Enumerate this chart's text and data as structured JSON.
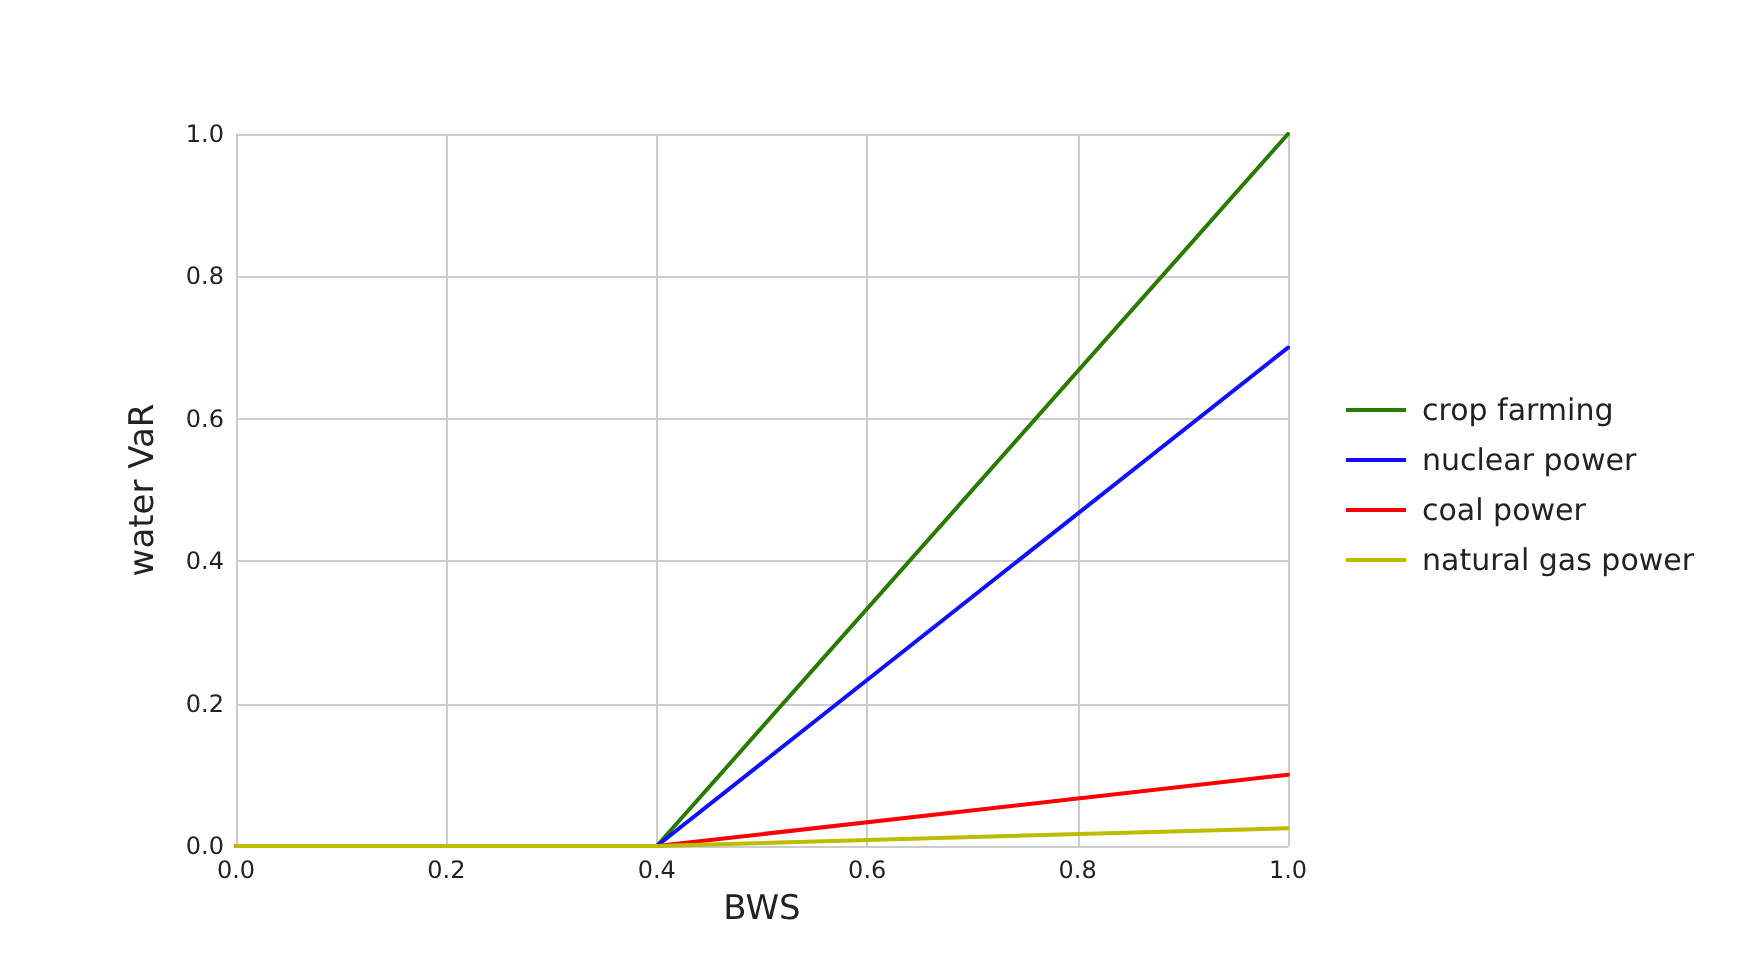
{
  "chart_data": {
    "type": "line",
    "xlabel": "BWS",
    "ylabel": "water VaR",
    "xlim": [
      0,
      1
    ],
    "ylim": [
      0,
      1
    ],
    "xticks": [
      {
        "value": 0,
        "label": "0.0"
      },
      0.2,
      0.4,
      0.6,
      0.8,
      {
        "value": 1,
        "label": "1.0"
      }
    ],
    "yticks": [
      {
        "value": 0,
        "label": "0.0"
      },
      0.2,
      0.4,
      0.6,
      0.8,
      {
        "value": 1,
        "label": "1.0"
      }
    ],
    "grid": true,
    "legend": "right",
    "marker": "none",
    "line_style": "solid",
    "series": [
      {
        "name": "crop farming",
        "color": "#2a7a00",
        "x": [
          0,
          0.4,
          1
        ],
        "values": [
          0,
          0,
          1
        ]
      },
      {
        "name": "nuclear power",
        "color": "#1010ff",
        "x": [
          0,
          0.4,
          1
        ],
        "values": [
          0,
          0,
          0.7
        ]
      },
      {
        "name": "coal power",
        "color": "#ff0000",
        "x": [
          0,
          0.4,
          1
        ],
        "values": [
          0,
          0,
          0.1
        ]
      },
      {
        "name": "natural gas power",
        "color": "#bdbd00",
        "x": [
          0,
          0.4,
          1
        ],
        "values": [
          0,
          0,
          0.025
        ]
      }
    ]
  }
}
